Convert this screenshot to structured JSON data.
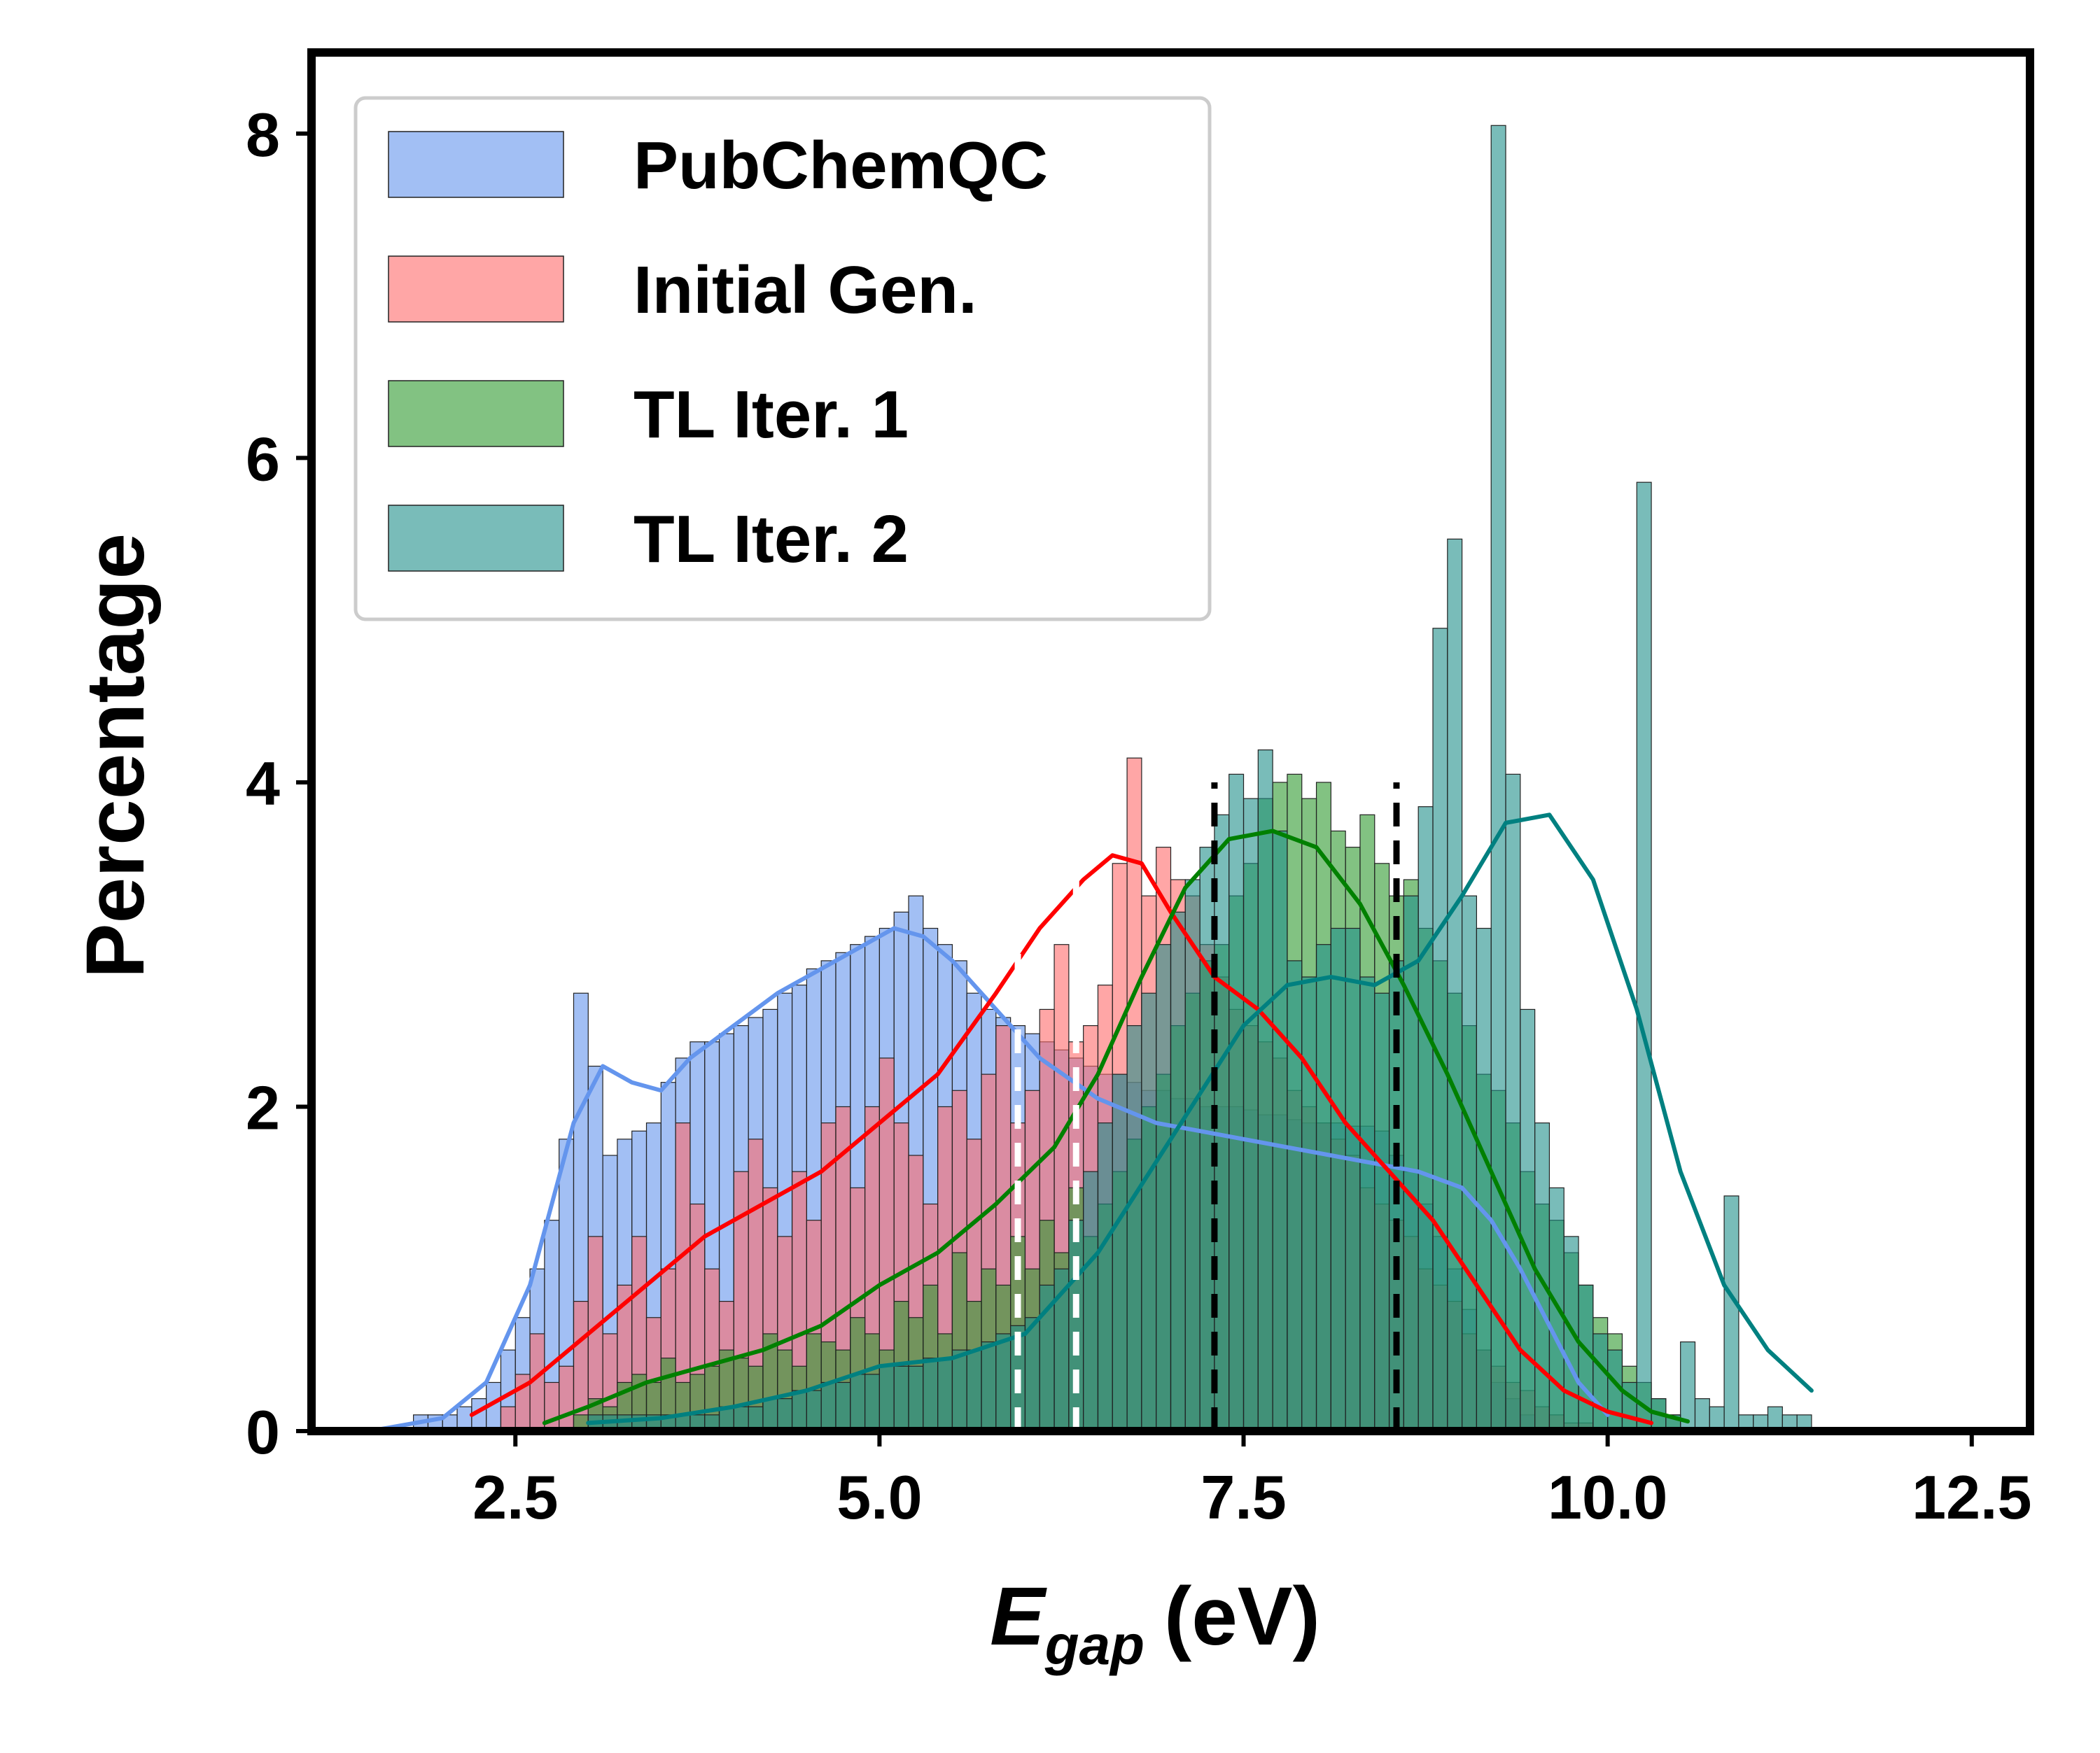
{
  "chart_data": {
    "type": "bar",
    "xlabel": "(eV)",
    "xlabel_symbol": "E",
    "xlabel_subscript": "gap",
    "ylabel": "Percentage",
    "xlim": [
      1.1,
      12.9
    ],
    "ylim": [
      0,
      8.5
    ],
    "xticks": [
      "2.5",
      "5.0",
      "7.5",
      "10.0",
      "12.5"
    ],
    "xtick_values": [
      2.5,
      5.0,
      7.5,
      10.0,
      12.5
    ],
    "yticks": [
      "0",
      "2",
      "4",
      "6",
      "8"
    ],
    "ytick_values": [
      0,
      2,
      4,
      6,
      8
    ],
    "grid": false,
    "legend_position": "top-left",
    "bin_width": 0.1,
    "series": [
      {
        "name": "PubChemQC",
        "color": "#6495ED",
        "kde_color": "#6495ED",
        "bins_x0": 1.8,
        "values": [
          0.1,
          0.1,
          0.1,
          0.15,
          0.2,
          0.3,
          0.5,
          0.7,
          1.0,
          1.3,
          1.8,
          2.7,
          2.25,
          1.7,
          1.8,
          1.85,
          1.9,
          2.15,
          2.3,
          2.4,
          2.4,
          2.45,
          2.5,
          2.55,
          2.6,
          2.7,
          2.75,
          2.85,
          2.9,
          2.95,
          3.0,
          3.05,
          3.1,
          3.2,
          3.3,
          3.1,
          3.0,
          2.9,
          2.7,
          2.6,
          2.55,
          2.5,
          2.45,
          2.4,
          2.35,
          2.3,
          2.25,
          2.2,
          2.2,
          2.15,
          2.1,
          2.1,
          2.05,
          2.05,
          2.0,
          2.0,
          2.0,
          1.98,
          1.95,
          1.95,
          1.92,
          1.9,
          1.9,
          1.9,
          1.88,
          1.88,
          1.85,
          1.7,
          1.6,
          1.4,
          1.2,
          1.0,
          0.75,
          0.5,
          0.3,
          0.2,
          0.1
        ],
        "kde_x": [
          1.5,
          2.0,
          2.3,
          2.6,
          2.9,
          3.1,
          3.3,
          3.5,
          3.7,
          4.0,
          4.3,
          4.6,
          4.9,
          5.1,
          5.3,
          5.5,
          5.8,
          6.1,
          6.5,
          6.9,
          7.2,
          7.5,
          7.8,
          8.1,
          8.4,
          8.7,
          9.0,
          9.2,
          9.4,
          9.6,
          9.8,
          10.0
        ],
        "kde_y": [
          0.0,
          0.08,
          0.3,
          0.9,
          1.9,
          2.25,
          2.15,
          2.1,
          2.3,
          2.5,
          2.7,
          2.85,
          3.0,
          3.1,
          3.05,
          2.9,
          2.6,
          2.3,
          2.05,
          1.9,
          1.85,
          1.8,
          1.75,
          1.7,
          1.65,
          1.6,
          1.5,
          1.3,
          1.0,
          0.65,
          0.3,
          0.1
        ]
      },
      {
        "name": "Initial Gen.",
        "color": "#FF6B6B",
        "kde_color": "#FF0000",
        "bins_x0": 2.4,
        "values": [
          0.15,
          0.35,
          0.6,
          0.3,
          0.4,
          0.8,
          1.2,
          0.6,
          0.9,
          1.2,
          0.7,
          1.0,
          1.9,
          1.4,
          1.0,
          0.8,
          1.6,
          1.8,
          1.5,
          1.2,
          1.6,
          1.3,
          1.9,
          2.0,
          1.5,
          2.0,
          2.3,
          1.9,
          1.7,
          1.4,
          2.0,
          2.1,
          1.8,
          2.2,
          2.5,
          1.9,
          2.1,
          2.6,
          3.0,
          2.4,
          2.5,
          2.75,
          3.5,
          4.15,
          3.3,
          3.6,
          3.4,
          3.3,
          3.0,
          2.8,
          2.6,
          2.5,
          2.4,
          2.3,
          2.1,
          2.0,
          1.9,
          1.8,
          1.7,
          1.5,
          1.4,
          1.3,
          1.2,
          1.0,
          0.9,
          0.8,
          0.6,
          0.5,
          0.4,
          0.3,
          0.25,
          0.15,
          0.1,
          0.05,
          0.05
        ],
        "kde_x": [
          2.2,
          2.6,
          3.0,
          3.4,
          3.8,
          4.2,
          4.6,
          5.0,
          5.4,
          5.8,
          6.1,
          6.4,
          6.6,
          6.8,
          7.0,
          7.3,
          7.6,
          7.9,
          8.2,
          8.5,
          8.8,
          9.1,
          9.4,
          9.7,
          10.0,
          10.3
        ],
        "kde_y": [
          0.1,
          0.3,
          0.6,
          0.9,
          1.2,
          1.4,
          1.6,
          1.9,
          2.2,
          2.7,
          3.1,
          3.4,
          3.55,
          3.5,
          3.2,
          2.8,
          2.6,
          2.3,
          1.9,
          1.6,
          1.3,
          0.9,
          0.5,
          0.25,
          0.12,
          0.05
        ]
      },
      {
        "name": "TL Iter. 1",
        "color": "#2E9A2E",
        "kde_color": "#008000",
        "bins_x0": 2.9,
        "values": [
          0.1,
          0.2,
          0.15,
          0.3,
          0.35,
          0.3,
          0.45,
          0.3,
          0.35,
          0.4,
          0.5,
          0.45,
          0.4,
          0.6,
          0.5,
          0.4,
          0.6,
          0.55,
          0.5,
          0.7,
          0.6,
          0.5,
          0.8,
          0.7,
          0.9,
          0.6,
          1.1,
          0.8,
          1.0,
          0.9,
          1.2,
          1.0,
          1.3,
          1.1,
          1.5,
          1.2,
          1.4,
          1.6,
          1.8,
          2.0,
          2.2,
          2.5,
          2.7,
          2.9,
          3.0,
          3.3,
          3.5,
          3.9,
          4.0,
          4.05,
          3.9,
          4.0,
          3.7,
          3.6,
          3.8,
          3.5,
          3.3,
          3.4,
          3.1,
          2.9,
          2.7,
          2.5,
          2.2,
          2.1,
          1.9,
          1.6,
          1.4,
          1.3,
          1.1,
          0.9,
          0.7,
          0.6,
          0.4,
          0.3,
          0.2,
          0.1
        ],
        "kde_x": [
          2.7,
          3.0,
          3.4,
          3.8,
          4.2,
          4.6,
          5.0,
          5.4,
          5.8,
          6.2,
          6.5,
          6.8,
          7.1,
          7.4,
          7.7,
          8.0,
          8.3,
          8.6,
          8.9,
          9.2,
          9.5,
          9.8,
          10.1,
          10.3,
          10.55
        ],
        "kde_y": [
          0.05,
          0.15,
          0.3,
          0.4,
          0.5,
          0.65,
          0.9,
          1.1,
          1.4,
          1.75,
          2.2,
          2.8,
          3.35,
          3.65,
          3.7,
          3.6,
          3.25,
          2.75,
          2.2,
          1.6,
          1.0,
          0.55,
          0.25,
          0.12,
          0.06
        ]
      },
      {
        "name": "TL Iter. 2",
        "color": "#1F8F8A",
        "kde_color": "#008080",
        "bins_x0": 3.0,
        "values": [
          0.1,
          0.1,
          0.1,
          0.1,
          0.1,
          0.1,
          0.1,
          0.1,
          0.1,
          0.15,
          0.15,
          0.15,
          0.2,
          0.2,
          0.25,
          0.25,
          0.3,
          0.3,
          0.35,
          0.35,
          0.4,
          0.4,
          0.4,
          0.45,
          0.45,
          0.5,
          0.5,
          0.55,
          0.6,
          0.65,
          0.7,
          0.9,
          1.0,
          1.3,
          1.6,
          1.9,
          2.2,
          2.5,
          2.7,
          3.0,
          3.2,
          3.4,
          3.6,
          3.8,
          4.05,
          3.9,
          4.2,
          3.7,
          2.9,
          2.8,
          3.0,
          3.1,
          3.1,
          2.8,
          2.7,
          2.9,
          3.3,
          3.85,
          4.95,
          5.5,
          3.3,
          3.1,
          8.05,
          4.05,
          2.6,
          1.9,
          1.5,
          1.2,
          0.9,
          0.6,
          0.5,
          0.3,
          5.85,
          0.2,
          0.1,
          0.55,
          0.2,
          0.15,
          1.45,
          0.1,
          0.1,
          0.15,
          0.1,
          0.1
        ],
        "kde_x": [
          3.0,
          3.5,
          4.0,
          4.5,
          5.0,
          5.5,
          6.0,
          6.5,
          7.0,
          7.5,
          7.8,
          8.1,
          8.4,
          8.7,
          9.0,
          9.3,
          9.6,
          9.9,
          10.2,
          10.5,
          10.8,
          11.1,
          11.4
        ],
        "kde_y": [
          0.05,
          0.08,
          0.15,
          0.25,
          0.4,
          0.45,
          0.6,
          1.1,
          1.8,
          2.5,
          2.75,
          2.8,
          2.75,
          2.9,
          3.3,
          3.75,
          3.8,
          3.4,
          2.6,
          1.6,
          0.9,
          0.5,
          0.25
        ]
      }
    ],
    "vlines": [
      {
        "x": 5.95,
        "color": "#ffffff",
        "style": "dashed"
      },
      {
        "x": 6.35,
        "color": "#ffffff",
        "style": "dashed"
      },
      {
        "x": 7.3,
        "color": "#000000",
        "style": "dashed"
      },
      {
        "x": 8.55,
        "color": "#000000",
        "style": "dashed"
      }
    ],
    "vline_ymax": 4.0
  }
}
